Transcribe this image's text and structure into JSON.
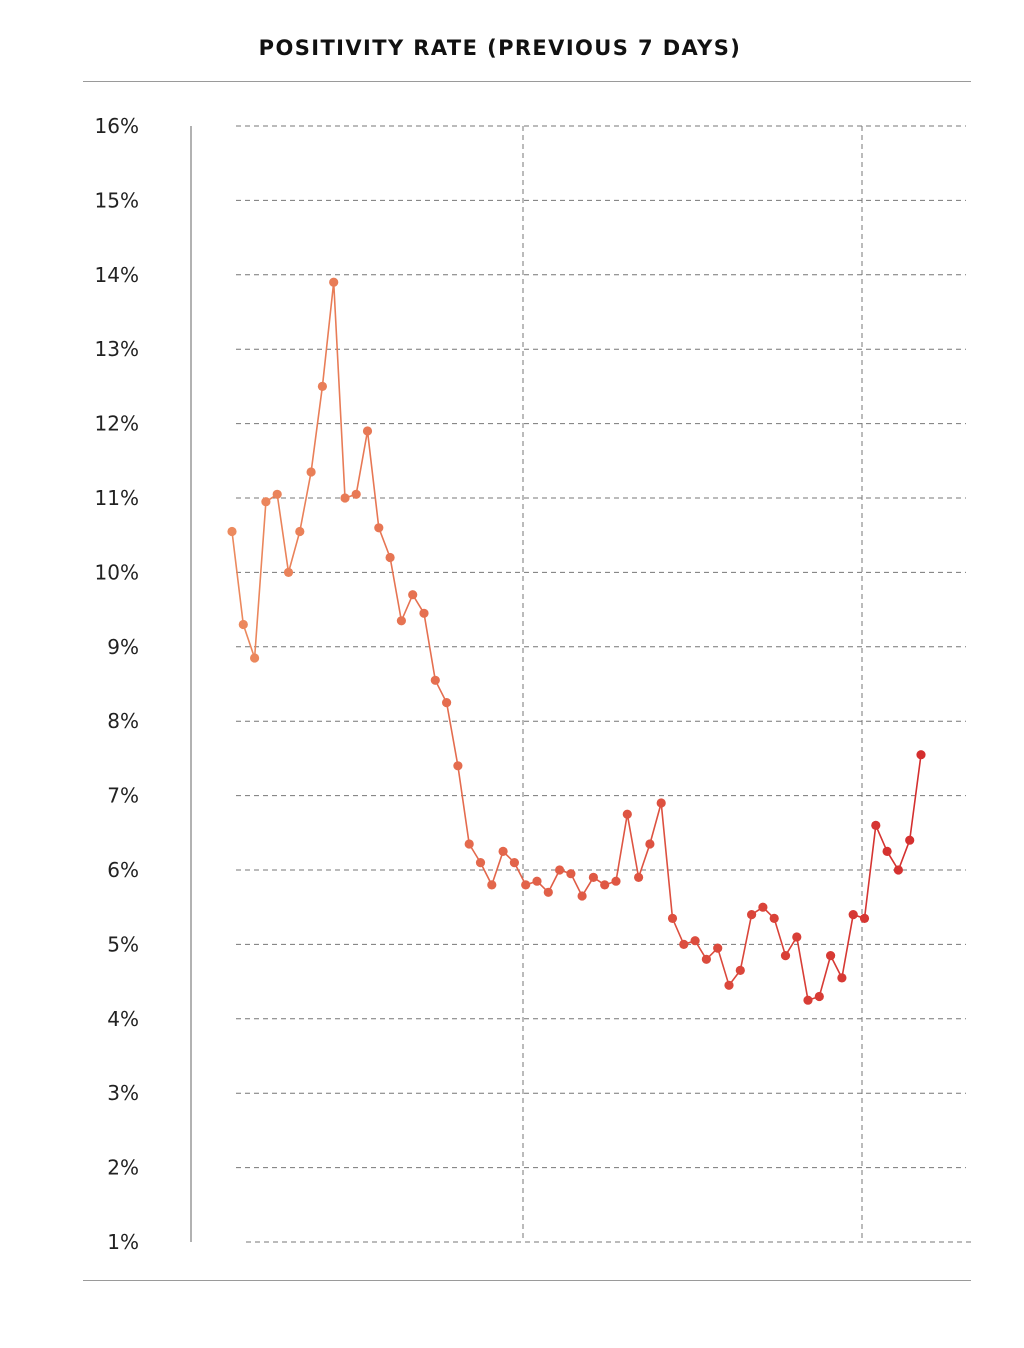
{
  "chart_data": {
    "type": "line",
    "title": "POSITIVITY RATE (PREVIOUS 7 DAYS)",
    "xlabel": "",
    "ylabel": "",
    "ylim": [
      1,
      16
    ],
    "y_ticks": [
      "16%",
      "15%",
      "14%",
      "13%",
      "12%",
      "11%",
      "10%",
      "9%",
      "8%",
      "7%",
      "6%",
      "5%",
      "4%",
      "3%",
      "2%",
      "1%"
    ],
    "y_tick_values": [
      16,
      15,
      14,
      13,
      12,
      11,
      10,
      9,
      8,
      7,
      6,
      5,
      4,
      3,
      2,
      1
    ],
    "grid": {
      "horizontal": "dashed",
      "vertical_dividers": 2
    },
    "colors": {
      "start": "#ec8a5e",
      "end": "#d42e2e",
      "grid": "#777777",
      "axis": "#999999",
      "rule": "#9a9a9a"
    },
    "series": [
      {
        "values": [
          10.55,
          9.3,
          8.85,
          10.95,
          11.05,
          10.0,
          10.55,
          11.35,
          12.5,
          13.9,
          11.0,
          11.05,
          11.9,
          10.6,
          10.2,
          9.35,
          9.7,
          9.45,
          8.55,
          8.25,
          7.4,
          6.35,
          6.1,
          5.8,
          6.25,
          6.1,
          5.8,
          5.85,
          5.7,
          6.0,
          5.95,
          5.65,
          5.9,
          5.8,
          5.85,
          6.75,
          5.9,
          6.35,
          6.9,
          5.35,
          5.0,
          5.05,
          4.8,
          4.95,
          4.45,
          4.65,
          5.4,
          5.5,
          5.35,
          4.85,
          5.1,
          4.25,
          4.3,
          4.85,
          4.55,
          5.4,
          5.35,
          6.6,
          6.25,
          6.0,
          6.4,
          7.55
        ]
      }
    ]
  }
}
